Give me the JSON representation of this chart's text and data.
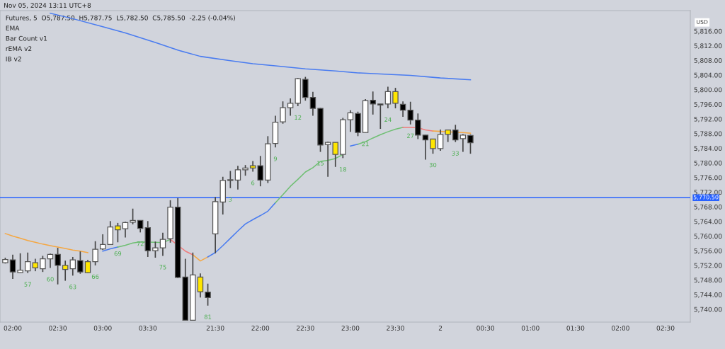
{
  "chart_data": {
    "type": "candlestick",
    "title": "Futures, 5  O5,787.50  H5,787.75  L5,782.50  C5,785.50  -2.25 (-0.04%)",
    "annotations": [
      "Nov 05, 2024 13:11 UTC+8",
      "EMA",
      "Bar Count v1",
      "rEMA v2",
      "IB v2",
      "USD",
      "57",
      "60",
      "63",
      "66",
      "69",
      "72",
      "75",
      "81",
      "3",
      "6",
      "9",
      "12",
      "15",
      "18",
      "21",
      "24",
      "27",
      "30",
      "33"
    ],
    "categories": [
      null,
      "02:00",
      null,
      null,
      null,
      null,
      null,
      "02:30",
      null,
      null,
      null,
      null,
      null,
      "03:00",
      null,
      null,
      null,
      null,
      null,
      "03:30",
      null,
      null,
      null,
      null,
      null,
      null,
      null,
      null,
      "21:30",
      null,
      null,
      null,
      null,
      null,
      "22:00",
      null,
      null,
      null,
      null,
      null,
      "22:30",
      null,
      null,
      null,
      null,
      null,
      "23:00",
      null,
      null,
      null,
      null,
      null,
      "23:30",
      null,
      null,
      null,
      null,
      null,
      "2",
      null,
      null,
      null,
      null,
      null,
      "00:30",
      null,
      null,
      null,
      null,
      null,
      "01:00",
      null,
      null,
      null,
      null,
      null,
      "01:30",
      null,
      null,
      null,
      null,
      null,
      "02:00",
      null,
      null,
      null,
      null,
      null,
      "02:30",
      null,
      null,
      null
    ],
    "ohlc": [
      [
        5752.7,
        5754.1,
        5752.5,
        5753.6
      ],
      [
        5753.5,
        5754.9,
        5748.3,
        5750.2
      ],
      [
        5750.0,
        5755.3,
        5749.9,
        5750.7
      ],
      [
        5750.5,
        5755.5,
        5749.9,
        5753.0
      ],
      [
        5751.3,
        5753.8,
        5750.4,
        5752.7
      ],
      [
        5751.1,
        5754.6,
        5750.2,
        5753.8
      ],
      [
        5753.8,
        5755.2,
        5751.3,
        5755.0
      ],
      [
        5755.0,
        5756.8,
        5746.8,
        5752.0
      ],
      [
        5750.9,
        5753.3,
        5747.8,
        5752.0
      ],
      [
        5751.1,
        5754.3,
        5749.2,
        5753.5
      ],
      [
        5753.3,
        5755.8,
        5749.7,
        5750.2
      ],
      [
        5750.0,
        5753.5,
        5749.9,
        5753.0
      ],
      [
        5753.0,
        5758.6,
        5752.0,
        5756.4
      ],
      [
        5756.5,
        5760.5,
        5756.2,
        5757.7
      ],
      [
        5757.7,
        5764.1,
        5757.7,
        5762.5
      ],
      [
        5761.7,
        5763.6,
        5758.3,
        5762.8
      ],
      [
        5762.0,
        5763.9,
        5759.6,
        5763.7
      ],
      [
        5763.8,
        5767.5,
        5763.2,
        5764.3
      ],
      [
        5764.3,
        5764.3,
        5761.0,
        5762.1
      ],
      [
        5762.3,
        5764.1,
        5754.3,
        5756.0
      ],
      [
        5756.0,
        5758.5,
        5754.1,
        5756.8
      ],
      [
        5756.8,
        5760.9,
        5754.6,
        5759.1
      ],
      [
        5759.3,
        5769.8,
        5758.2,
        5767.9
      ],
      [
        5767.9,
        5770.4,
        5748.5,
        5748.7
      ],
      [
        5748.8,
        5753.8,
        5737.0,
        5737.0
      ],
      [
        5737.0,
        5755.5,
        5737.0,
        5749.4
      ],
      [
        5744.8,
        5749.8,
        5743.2,
        5748.8
      ],
      [
        5744.7,
        5747.0,
        5741.0,
        5743.2
      ],
      [
        5760.6,
        5770.7,
        5755.3,
        5769.4
      ],
      [
        5769.3,
        5776.2,
        5765.9,
        5775.2
      ],
      [
        5775.2,
        5777.8,
        5773.1,
        5775.4
      ],
      [
        5775.3,
        5779.2,
        5772.7,
        5778.1
      ],
      [
        5778.1,
        5779.4,
        5776.5,
        5778.6
      ],
      [
        5778.6,
        5780.5,
        5777.6,
        5779.2
      ],
      [
        5779.2,
        5781.9,
        5773.6,
        5775.3
      ],
      [
        5775.3,
        5787.3,
        5774.5,
        5785.2
      ],
      [
        5785.3,
        5792.9,
        5784.2,
        5791.1
      ],
      [
        5791.2,
        5796.8,
        5790.7,
        5795.1
      ],
      [
        5795.1,
        5797.6,
        5792.9,
        5796.3
      ],
      [
        5796.3,
        5803.2,
        5795.5,
        5803.0
      ],
      [
        5802.8,
        5803.5,
        5797.0,
        5797.9
      ],
      [
        5797.9,
        5799.4,
        5792.9,
        5794.9
      ],
      [
        5794.9,
        5795.0,
        5783.0,
        5784.9
      ],
      [
        5785.0,
        5785.8,
        5776.2,
        5785.6
      ],
      [
        5782.3,
        5785.6,
        5778.9,
        5785.6
      ],
      [
        5782.3,
        5792.3,
        5781.3,
        5791.8
      ],
      [
        5791.8,
        5794.4,
        5788.5,
        5793.7
      ],
      [
        5793.5,
        5794.0,
        5787.3,
        5788.3
      ],
      [
        5788.3,
        5797.4,
        5788.3,
        5797.0
      ],
      [
        5797.1,
        5799.5,
        5793.2,
        5796.1
      ],
      [
        5796.1,
        5796.1,
        5789.3,
        5795.8
      ],
      [
        5796.1,
        5800.8,
        5794.9,
        5799.5
      ],
      [
        5796.3,
        5800.5,
        5794.9,
        5799.5
      ],
      [
        5796.0,
        5796.8,
        5792.6,
        5794.4
      ],
      [
        5794.4,
        5796.7,
        5790.5,
        5791.7
      ],
      [
        5791.7,
        5793.5,
        5786.5,
        5787.6
      ],
      [
        5787.6,
        5787.6,
        5780.9,
        5786.3
      ],
      [
        5783.9,
        5786.5,
        5782.5,
        5786.5
      ],
      [
        5783.9,
        5789.1,
        5783.3,
        5787.8
      ],
      [
        5787.8,
        5789.0,
        5785.7,
        5789.0
      ],
      [
        5789.0,
        5790.4,
        5785.7,
        5786.3
      ],
      [
        5786.6,
        5787.9,
        5783.0,
        5787.6
      ],
      [
        5787.5,
        5787.75,
        5782.5,
        5785.5
      ],
      null,
      null,
      null,
      null,
      null,
      null,
      null,
      null,
      null,
      null,
      null,
      null,
      null,
      null,
      null,
      null,
      null,
      null,
      null,
      null,
      null,
      null,
      null,
      null,
      null,
      null,
      null,
      null,
      null
    ],
    "colors": [
      "#ffffff",
      "#000000",
      "#ffffff",
      "#ffffff",
      "#ffe600",
      "#ffffff",
      "#ffffff",
      "#000000",
      "#ffe600",
      "#ffffff",
      "#000000",
      "#ffe600",
      "#ffffff",
      "#ffffff",
      "#ffffff",
      "#ffe600",
      "#ffffff",
      "#ffffff",
      "#000000",
      "#000000",
      "#ffffff",
      "#ffffff",
      "#ffffff",
      "#000000",
      "#000000",
      "#ffffff",
      "#ffe600",
      "#000000",
      "#ffffff",
      "#ffffff",
      "#ffffff",
      "#ffffff",
      "#ffffff",
      "#ffe600",
      "#000000",
      "#ffffff",
      "#ffffff",
      "#ffffff",
      "#ffffff",
      "#ffffff",
      "#000000",
      "#000000",
      "#000000",
      "#ffffff",
      "#ffe600",
      "#ffffff",
      "#ffffff",
      "#000000",
      "#ffffff",
      "#000000",
      "#000000",
      "#ffffff",
      "#ffe600",
      "#000000",
      "#000000",
      "#000000",
      "#000000",
      "#ffe600",
      "#ffffff",
      "#ffe600",
      "#000000",
      "#ffffff",
      "#000000",
      null,
      null,
      null,
      null,
      null,
      null,
      null,
      null,
      null,
      null,
      null,
      null,
      null,
      null,
      null,
      null,
      null,
      null,
      null,
      null,
      null,
      null,
      null,
      null,
      null,
      null,
      null,
      null,
      null
    ],
    "series": [
      {
        "type": "line",
        "color": "#4a7cf0",
        "values": [
          null,
          null,
          null,
          null,
          null,
          null,
          5820.9,
          null,
          null,
          5819.4,
          null,
          null,
          null,
          5817.2,
          null,
          null,
          5815.5,
          null,
          null,
          null,
          5812.9,
          null,
          null,
          5810.8,
          null,
          null,
          5809.1,
          null,
          null,
          null,
          5807.9,
          null,
          null,
          5807.1,
          null,
          null,
          5806.5,
          null,
          null,
          null,
          5805.7,
          null,
          null,
          null,
          5805.1,
          null,
          null,
          5804.6,
          null,
          null,
          null,
          5804.2,
          null,
          null,
          5803.9,
          null,
          null,
          null,
          5803.2,
          null,
          null,
          null,
          5802.7,
          null,
          null,
          null,
          null,
          null,
          null,
          null,
          null,
          null,
          null,
          null,
          null,
          null,
          null,
          null,
          null,
          null,
          null,
          null,
          null,
          null,
          null,
          null,
          null,
          null,
          null,
          null,
          null,
          null
        ]
      },
      {
        "type": "line",
        "color": "#f5a742",
        "values": [
          5760.7,
          5760.0,
          5759.4,
          5758.8,
          5758.3,
          5757.8,
          5757.4,
          5757.0,
          5756.6,
          5756.2,
          5755.9,
          5755.5,
          null,
          null,
          null,
          null,
          null,
          null,
          null,
          null,
          null,
          null,
          null,
          null,
          null,
          null,
          null,
          null,
          null,
          null,
          null,
          null,
          null,
          null,
          null,
          null,
          null,
          null,
          null,
          null,
          null,
          null,
          null,
          null,
          null,
          null,
          null,
          null,
          null,
          null,
          null,
          null,
          null,
          null,
          null,
          null,
          null,
          null,
          null,
          null,
          null,
          null,
          null,
          null,
          null,
          null,
          null,
          null,
          null,
          null,
          null,
          null,
          null,
          null,
          null,
          null,
          null,
          null,
          null,
          null,
          null,
          null,
          null,
          null,
          null,
          null,
          null,
          null,
          null,
          null,
          null,
          null
        ]
      },
      {
        "type": "line",
        "color": "#4a7cf0",
        "values": [
          null,
          null,
          null,
          null,
          null,
          null,
          null,
          null,
          null,
          null,
          null,
          null,
          null,
          5755.9,
          5756.5,
          5757.0,
          null,
          null,
          null,
          null,
          null,
          null,
          null,
          null,
          null,
          null,
          null,
          null,
          null,
          null,
          null,
          null,
          null,
          null,
          null,
          null,
          null,
          null,
          null,
          null,
          null,
          null,
          null,
          null,
          null,
          null,
          null,
          null,
          null,
          null,
          null,
          null,
          null,
          null,
          null,
          null,
          null,
          null,
          null,
          null,
          null,
          null,
          null,
          null,
          null,
          null,
          null,
          null,
          null,
          null,
          null,
          null,
          null,
          null,
          null,
          null,
          null,
          null,
          null,
          null,
          null,
          null,
          null,
          null,
          null,
          null,
          null,
          null,
          null,
          null,
          null,
          null
        ]
      },
      {
        "type": "line",
        "color": "#6fbf73",
        "values": [
          null,
          null,
          null,
          null,
          null,
          null,
          null,
          null,
          null,
          null,
          null,
          null,
          null,
          null,
          null,
          5757.0,
          5757.5,
          5758.1,
          5758.4,
          null,
          5758.3,
          5758.2,
          5759.1,
          null,
          null,
          null,
          null,
          null,
          null,
          null,
          null,
          null,
          null,
          null,
          null,
          null,
          null,
          null,
          null,
          null,
          null,
          null,
          null,
          null,
          null,
          null,
          null,
          null,
          null,
          null,
          null,
          null,
          null,
          null,
          null,
          null,
          null,
          null,
          null,
          null,
          null,
          null,
          null,
          null,
          null,
          null,
          null,
          null,
          null,
          null,
          null,
          null,
          null,
          null,
          null,
          null,
          null,
          null,
          null,
          null,
          null,
          null,
          null,
          null,
          null,
          null,
          null,
          null,
          null,
          null,
          null,
          null
        ]
      },
      {
        "type": "line",
        "color": "#f07b7b",
        "values": [
          null,
          null,
          null,
          null,
          null,
          null,
          null,
          null,
          null,
          null,
          null,
          null,
          null,
          null,
          null,
          null,
          null,
          null,
          null,
          null,
          null,
          null,
          5759.1,
          null,
          5755.9,
          5754.9,
          null,
          null,
          null,
          null,
          null,
          null,
          null,
          null,
          null,
          null,
          null,
          null,
          null,
          null,
          null,
          null,
          null,
          null,
          null,
          null,
          null,
          null,
          null,
          null,
          null,
          null,
          null,
          null,
          null,
          null,
          null,
          null,
          null,
          null,
          null,
          null,
          null,
          null,
          null,
          null,
          null,
          null,
          null,
          null,
          null,
          null,
          null,
          null,
          null,
          null,
          null,
          null,
          null,
          null,
          null,
          null,
          null,
          null,
          null,
          null,
          null,
          null,
          null,
          null,
          null,
          null
        ]
      },
      {
        "type": "line",
        "color": "#f5a742",
        "values": [
          null,
          null,
          null,
          null,
          null,
          null,
          null,
          null,
          null,
          null,
          null,
          null,
          null,
          null,
          null,
          null,
          null,
          null,
          null,
          null,
          null,
          null,
          null,
          null,
          null,
          5754.9,
          5753.2,
          5754.3,
          null,
          null,
          null,
          null,
          null,
          null,
          null,
          null,
          null,
          null,
          null,
          null,
          null,
          null,
          null,
          null,
          null,
          null,
          null,
          null,
          null,
          null,
          null,
          null,
          null,
          null,
          null,
          null,
          null,
          null,
          null,
          null,
          null,
          null,
          null,
          null,
          null,
          null,
          null,
          null,
          null,
          null,
          null,
          null,
          null,
          null,
          null,
          null,
          null,
          null,
          null,
          null,
          null,
          null,
          null,
          null,
          null,
          null,
          null,
          null,
          null,
          null,
          null,
          null
        ]
      },
      {
        "type": "line",
        "color": "#4a7cf0",
        "values": [
          null,
          null,
          null,
          null,
          null,
          null,
          null,
          null,
          null,
          null,
          null,
          null,
          null,
          null,
          null,
          null,
          null,
          null,
          null,
          null,
          null,
          null,
          null,
          null,
          null,
          null,
          null,
          5754.3,
          5755.5,
          5757.4,
          5759.4,
          5761.4,
          5763.3,
          5764.5,
          5765.6,
          5766.8,
          5769.1,
          null,
          null,
          null,
          null,
          null,
          null,
          null,
          null,
          null,
          null,
          null,
          null,
          null,
          null,
          null,
          null,
          null,
          null,
          null,
          null,
          null,
          null,
          null,
          null,
          null,
          null,
          null,
          null,
          null,
          null,
          null,
          null,
          null,
          null,
          null,
          null,
          null,
          null,
          null,
          null,
          null,
          null,
          null,
          null,
          null,
          null,
          null,
          null,
          null,
          null,
          null,
          null,
          null,
          null,
          null
        ]
      },
      {
        "type": "line",
        "color": "#6fbf73",
        "values": [
          null,
          null,
          null,
          null,
          null,
          null,
          null,
          null,
          null,
          null,
          null,
          null,
          null,
          null,
          null,
          null,
          null,
          null,
          null,
          null,
          null,
          null,
          null,
          null,
          null,
          null,
          null,
          null,
          null,
          null,
          null,
          null,
          null,
          null,
          null,
          null,
          5769.1,
          5771.3,
          5773.6,
          5775.5,
          5777.5,
          5778.7,
          5780.4,
          5780.7,
          5781.2,
          5782.3,
          null,
          null,
          null,
          null,
          null,
          null,
          null,
          null,
          null,
          null,
          null,
          null,
          null,
          null,
          null,
          null,
          null,
          null,
          null,
          null,
          null,
          null,
          null,
          null,
          null,
          null,
          null,
          null,
          null,
          null,
          null,
          null,
          null,
          null,
          null,
          null,
          null,
          null,
          null,
          null,
          null,
          null,
          null,
          null,
          null,
          null
        ]
      },
      {
        "type": "line",
        "color": "#4a7cf0",
        "values": [
          null,
          null,
          null,
          null,
          null,
          null,
          null,
          null,
          null,
          null,
          null,
          null,
          null,
          null,
          null,
          null,
          null,
          null,
          null,
          null,
          null,
          null,
          null,
          null,
          null,
          null,
          null,
          null,
          null,
          null,
          null,
          null,
          null,
          null,
          null,
          null,
          null,
          null,
          null,
          null,
          null,
          null,
          null,
          null,
          null,
          null,
          5784.6,
          5785.1,
          null,
          null,
          null,
          null,
          null,
          null,
          null,
          null,
          null,
          null,
          null,
          null,
          null,
          null,
          null,
          null,
          null,
          null,
          null,
          null,
          null,
          null,
          null,
          null,
          null,
          null,
          null,
          null,
          null,
          null,
          null,
          null,
          null,
          null,
          null,
          null,
          null,
          null,
          null,
          null,
          null,
          null,
          null,
          null
        ]
      },
      {
        "type": "line",
        "color": "#6fbf73",
        "values": [
          null,
          null,
          null,
          null,
          null,
          null,
          null,
          null,
          null,
          null,
          null,
          null,
          null,
          null,
          null,
          null,
          null,
          null,
          null,
          null,
          null,
          null,
          null,
          null,
          null,
          null,
          null,
          null,
          null,
          null,
          null,
          null,
          null,
          null,
          null,
          null,
          null,
          null,
          null,
          null,
          null,
          null,
          null,
          null,
          null,
          null,
          null,
          5785.1,
          5785.8,
          5786.8,
          5787.7,
          5788.5,
          5789.2,
          5789.7,
          null,
          null,
          null,
          null,
          null,
          null,
          null,
          null,
          null,
          null,
          null,
          null,
          null,
          null,
          null,
          null,
          null,
          null,
          null,
          null,
          null,
          null,
          null,
          null,
          null,
          null,
          null,
          null,
          null,
          null,
          null,
          null,
          null,
          null,
          null,
          null,
          null,
          null
        ]
      },
      {
        "type": "line",
        "color": "#f07b7b",
        "values": [
          null,
          null,
          null,
          null,
          null,
          null,
          null,
          null,
          null,
          null,
          null,
          null,
          null,
          null,
          null,
          null,
          null,
          null,
          null,
          null,
          null,
          null,
          null,
          null,
          null,
          null,
          null,
          null,
          null,
          null,
          null,
          null,
          null,
          null,
          null,
          null,
          null,
          null,
          null,
          null,
          null,
          null,
          null,
          null,
          null,
          null,
          null,
          null,
          null,
          null,
          null,
          null,
          null,
          5789.7,
          5789.7,
          5789.6,
          5789.0,
          5788.7,
          null,
          null,
          null,
          null,
          null,
          null,
          null,
          null,
          null,
          null,
          null,
          null,
          null,
          null,
          null,
          null,
          null,
          null,
          null,
          null,
          null,
          null,
          null,
          null,
          null,
          null,
          null,
          null,
          null,
          null,
          null,
          null,
          null,
          null
        ]
      },
      {
        "type": "line",
        "color": "#f5a742",
        "values": [
          null,
          null,
          null,
          null,
          null,
          null,
          null,
          null,
          null,
          null,
          null,
          null,
          null,
          null,
          null,
          null,
          null,
          null,
          null,
          null,
          null,
          null,
          null,
          null,
          null,
          null,
          null,
          null,
          null,
          null,
          null,
          null,
          null,
          null,
          null,
          null,
          null,
          null,
          null,
          null,
          null,
          null,
          null,
          null,
          null,
          null,
          null,
          null,
          null,
          null,
          null,
          null,
          null,
          null,
          null,
          null,
          null,
          5788.7,
          5788.6,
          5788.5,
          5788.4,
          5788.3,
          5788.1,
          null,
          null,
          null,
          null,
          null,
          null,
          null,
          null,
          null,
          null,
          null,
          null,
          null,
          null,
          null,
          null,
          null,
          null,
          null,
          null,
          null,
          null,
          null,
          null,
          null,
          null,
          null,
          null,
          null
        ]
      }
    ],
    "ylim": [
      5736.5,
      5821.6
    ],
    "yticks": [
      {
        "value": 5740,
        "label": "5,740.00"
      },
      {
        "value": 5744,
        "label": "5,744.00"
      },
      {
        "value": 5748,
        "label": "5,748.00"
      },
      {
        "value": 5752,
        "label": "5,752.00"
      },
      {
        "value": 5756,
        "label": "5,756.00"
      },
      {
        "value": 5760,
        "label": "5,760.00"
      },
      {
        "value": 5764,
        "label": "5,764.00"
      },
      {
        "value": 5768,
        "label": "5,768.00"
      },
      {
        "value": 5772,
        "label": "5,772.00"
      },
      {
        "value": 5776,
        "label": "5,776.00"
      },
      {
        "value": 5780,
        "label": "5,780.00"
      },
      {
        "value": 5784,
        "label": "5,784.00"
      },
      {
        "value": 5788,
        "label": "5,788.00"
      },
      {
        "value": 5792,
        "label": "5,792.00"
      },
      {
        "value": 5796,
        "label": "5,796.00"
      },
      {
        "value": 5800,
        "label": "5,800.00"
      },
      {
        "value": 5804,
        "label": "5,804.00"
      },
      {
        "value": 5808,
        "label": "5,808.00"
      },
      {
        "value": 5812,
        "label": "5,812.00"
      },
      {
        "value": 5816,
        "label": "5,816.00"
      }
    ],
    "ref_lines": [
      {
        "axis": "y",
        "value": 5770.5,
        "label": "5,770.50",
        "color": "#2962ff"
      }
    ]
  }
}
